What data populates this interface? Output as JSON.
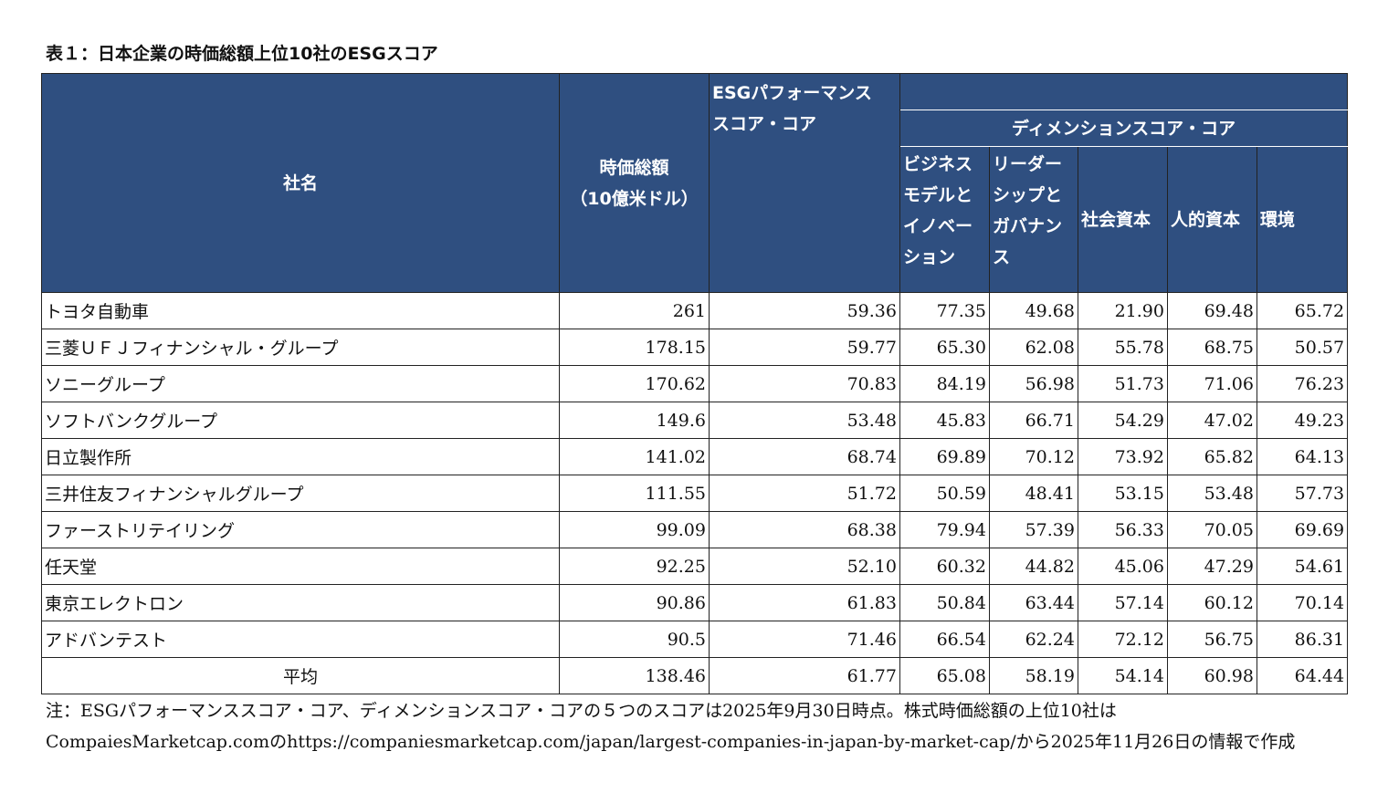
{
  "title": "表１：日本企業の時価総額上位10社のESGスコア",
  "table": {
    "header": {
      "name": "社名",
      "market_cap": "時価総額\n（10億米ドル）",
      "esg_score": "ESGパフォーマンス\nスコア・コア",
      "dimension": "ディメンションスコア・コア",
      "dims": [
        "ビジネスモデルとイノベーション",
        "リーダーシップとガバナンス",
        "社会資本",
        "人的資本",
        "環境"
      ]
    },
    "rows": [
      [
        "トヨタ自動車",
        "261",
        "59.36",
        "77.35",
        "49.68",
        "21.90",
        "69.48",
        "65.72"
      ],
      [
        "三菱ＵＦＪフィナンシャル・グループ",
        "178.15",
        "59.77",
        "65.30",
        "62.08",
        "55.78",
        "68.75",
        "50.57"
      ],
      [
        "ソニーグループ",
        "170.62",
        "70.83",
        "84.19",
        "56.98",
        "51.73",
        "71.06",
        "76.23"
      ],
      [
        "ソフトバンクグループ",
        "149.6",
        "53.48",
        "45.83",
        "66.71",
        "54.29",
        "47.02",
        "49.23"
      ],
      [
        "日立製作所",
        "141.02",
        "68.74",
        "69.89",
        "70.12",
        "73.92",
        "65.82",
        "64.13"
      ],
      [
        "三井住友フィナンシャルグループ",
        "111.55",
        "51.72",
        "50.59",
        "48.41",
        "53.15",
        "53.48",
        "57.73"
      ],
      [
        "ファーストリテイリング",
        "99.09",
        "68.38",
        "79.94",
        "57.39",
        "56.33",
        "70.05",
        "69.69"
      ],
      [
        "任天堂",
        "92.25",
        "52.10",
        "60.32",
        "44.82",
        "45.06",
        "47.29",
        "54.61"
      ],
      [
        "東京エレクトロン",
        "90.86",
        "61.83",
        "50.84",
        "63.44",
        "57.14",
        "60.12",
        "70.14"
      ],
      [
        "アドバンテスト",
        "90.5",
        "71.46",
        "66.54",
        "62.24",
        "72.12",
        "56.75",
        "86.31"
      ]
    ],
    "average": [
      "平均",
      "138.46",
      "61.77",
      "65.08",
      "58.19",
      "54.14",
      "60.98",
      "64.44"
    ]
  },
  "note": [
    "注：ESGパフォーマンススコア・コア、ディメンションスコア・コアの５つのスコアは2025年9月30日時点。株式時価総額の上位10社は",
    "CompaiesMarketcap.comのhttps://companiesmarketcap.com/japan/largest-companies-in-japan-by-market-cap/から2025年11月26日の情報で作成"
  ]
}
